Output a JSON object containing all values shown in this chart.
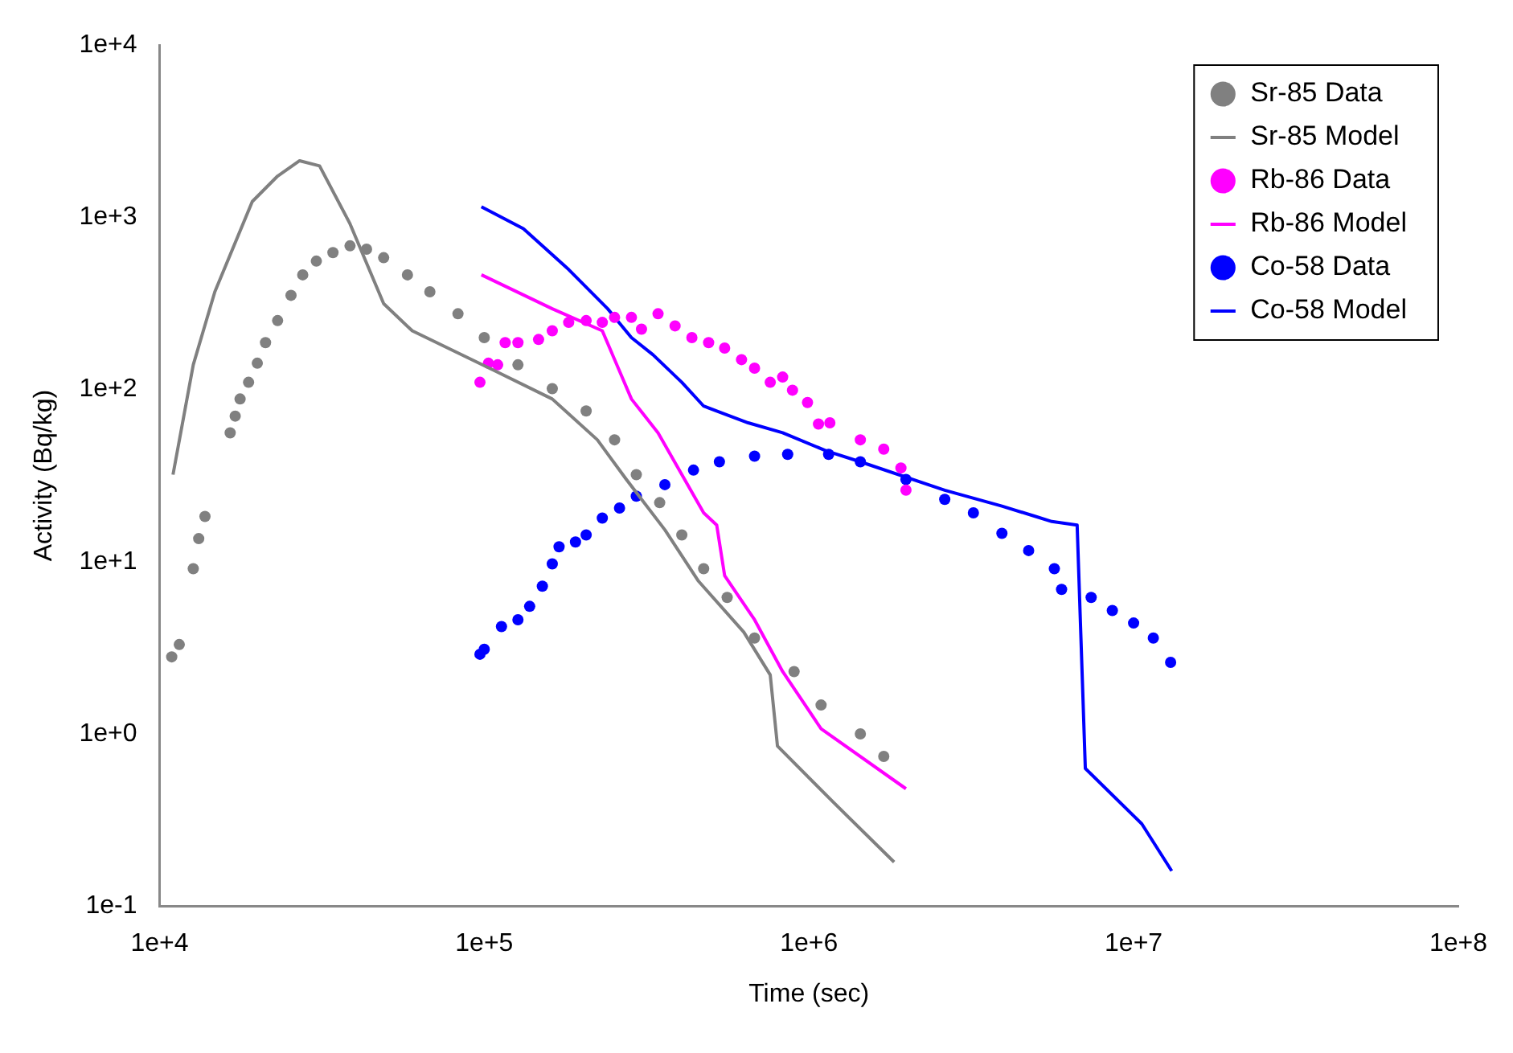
{
  "chart_data": {
    "type": "scatter",
    "xlabel": "Time (sec)",
    "ylabel": "Activity (Bq/kg)",
    "log": "xy",
    "legend": "top right",
    "xlim": [
      10000,
      100000000
    ],
    "ylim": [
      0.1,
      10000
    ],
    "xticks": [
      {
        "value": 10000,
        "label": "1e+4"
      },
      {
        "value": 100000,
        "label": "1e+5"
      },
      {
        "value": 1000000,
        "label": "1e+6"
      },
      {
        "value": 10000000,
        "label": "1e+7"
      },
      {
        "value": 100000000,
        "label": "1e+8"
      }
    ],
    "yticks": [
      {
        "value": 0.1,
        "label": "1e-1"
      },
      {
        "value": 1,
        "label": "1e+0"
      },
      {
        "value": 10,
        "label": "1e+1"
      },
      {
        "value": 100,
        "label": "1e+2"
      },
      {
        "value": 1000,
        "label": "1e+3"
      },
      {
        "value": 10000,
        "label": "1e+4"
      }
    ],
    "series": [
      {
        "name": "Sr-85 Data",
        "type": "scatter",
        "marker": "circle",
        "color": "#808080",
        "x": [
          10900,
          11500,
          12700,
          13200,
          13800,
          16500,
          17100,
          17700,
          18800,
          20000,
          21200,
          23100,
          25400,
          27600,
          30400,
          34200,
          38600,
          43400,
          49000,
          58000,
          68000,
          83000,
          100000,
          127000,
          162000,
          206000,
          252000,
          294000,
          347000,
          406000,
          474000,
          560000,
          680000,
          900000,
          1090000,
          1440000,
          1700000
        ],
        "values": [
          2.8,
          3.3,
          9.1,
          13.6,
          18.3,
          56,
          70,
          88,
          110,
          142,
          187,
          251,
          352,
          463,
          556,
          623,
          682,
          652,
          582,
          463,
          369,
          275,
          200,
          139,
          101,
          75,
          51,
          32,
          22,
          14.3,
          9.1,
          6.2,
          3.6,
          2.3,
          1.47,
          1.0,
          0.74
        ]
      },
      {
        "name": "Sr-85 Model",
        "type": "line",
        "marker": "none",
        "color": "#808080",
        "x": [
          11000,
          12700,
          14800,
          19300,
          23100,
          27000,
          31100,
          38600,
          49000,
          60000,
          109000,
          162000,
          223000,
          274000,
          360000,
          457000,
          630000,
          760000,
          800000,
          1190000,
          1830000
        ],
        "values": [
          32,
          139,
          369,
          1233,
          1734,
          2128,
          1987,
          916,
          315,
          219,
          127,
          88,
          51,
          30,
          15.3,
          7.7,
          3.9,
          2.2,
          0.85,
          0.4,
          0.18
        ]
      },
      {
        "name": "Rb-86 Data",
        "type": "scatter",
        "marker": "circle",
        "color": "#ff00ff",
        "x": [
          97000,
          103000,
          110000,
          116000,
          127000,
          147000,
          162000,
          182000,
          206000,
          231000,
          252000,
          284000,
          305000,
          343000,
          387000,
          436000,
          491000,
          550000,
          620000,
          680000,
          760000,
          830000,
          890000,
          990000,
          1070000,
          1160000,
          1440000,
          1700000,
          1920000,
          1990000
        ],
        "values": [
          110,
          142,
          139,
          187,
          187,
          195,
          219,
          245,
          251,
          245,
          262,
          262,
          224,
          275,
          234,
          200,
          187,
          174,
          149,
          133,
          110,
          118,
          99,
          84,
          63,
          64,
          51,
          45,
          35,
          26
        ]
      },
      {
        "name": "Rb-86 Model",
        "type": "line",
        "marker": "none",
        "color": "#ff00ff",
        "x": [
          98000,
          162000,
          231000,
          284000,
          343000,
          474000,
          520000,
          550000,
          680000,
          830000,
          1090000,
          1990000
        ],
        "values": [
          463,
          294,
          219,
          88,
          56,
          19.2,
          16.3,
          8.3,
          4.6,
          2.3,
          1.07,
          0.48
        ]
      },
      {
        "name": "Co-58 Data",
        "type": "scatter",
        "marker": "circle",
        "color": "#0000ff",
        "x": [
          97000,
          100000,
          113000,
          127000,
          138000,
          151000,
          162000,
          170000,
          191000,
          206000,
          231000,
          261000,
          294000,
          360000,
          441000,
          530000,
          680000,
          860000,
          1150000,
          1440000,
          1990000,
          2620000,
          3210000,
          3930000,
          4750000,
          5700000,
          6000000,
          7400000,
          8600000,
          10000000,
          11500000,
          13000000
        ],
        "values": [
          2.9,
          3.1,
          4.2,
          4.6,
          5.5,
          7.2,
          9.7,
          12.2,
          13,
          14.3,
          17.9,
          20.5,
          24,
          28,
          34,
          38,
          41,
          42,
          42,
          38,
          30,
          23,
          19.2,
          14.6,
          11.6,
          9.1,
          6.9,
          6.2,
          5.2,
          4.4,
          3.6,
          2.6
        ]
      },
      {
        "name": "Co-58 Model",
        "type": "line",
        "marker": "none",
        "color": "#0000ff",
        "x": [
          98000,
          132000,
          182000,
          240000,
          284000,
          331000,
          406000,
          474000,
          650000,
          830000,
          1130000,
          1440000,
          2620000,
          3930000,
          4990000,
          5600000,
          6700000,
          7100000,
          10600000,
          13100000
        ],
        "values": [
          1151,
          857,
          497,
          294,
          200,
          159,
          110,
          80,
          64,
          56,
          44,
          38,
          26,
          21,
          18.3,
          17.1,
          16.3,
          0.63,
          0.3,
          0.16
        ]
      }
    ]
  }
}
